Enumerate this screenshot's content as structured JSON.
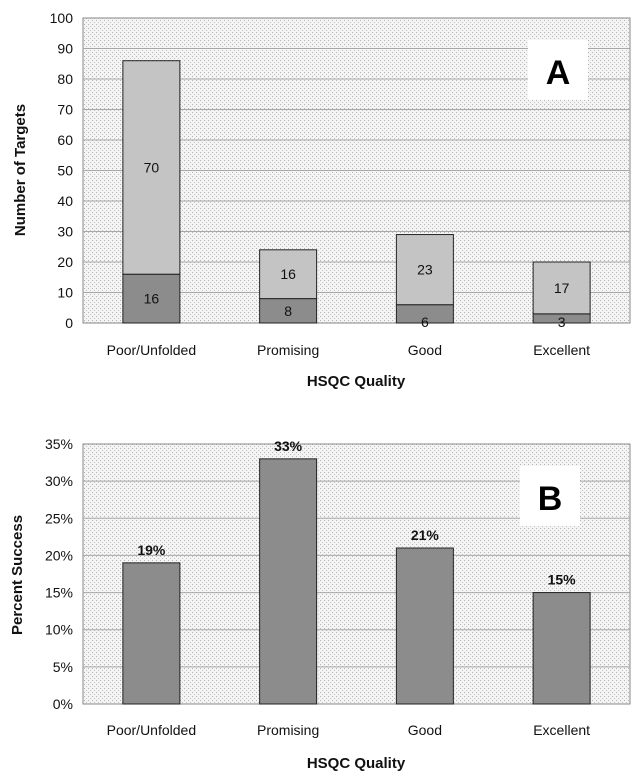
{
  "chart_data": [
    {
      "type": "bar",
      "stacked": true,
      "panel_label": "A",
      "categories": [
        "Poor/Unfolded",
        "Promising",
        "Good",
        "Excellent"
      ],
      "series": [
        {
          "values": [
            16,
            8,
            6,
            3
          ],
          "color": "#8c8c8c"
        },
        {
          "values": [
            70,
            16,
            23,
            17
          ],
          "color": "#c4c4c4"
        }
      ],
      "xlabel": "HSQC Quality",
      "ylabel": "Number of Targets",
      "ylim": [
        0,
        100
      ],
      "yticks": [
        0,
        10,
        20,
        30,
        40,
        50,
        60,
        70,
        80,
        90,
        100
      ],
      "grid": true
    },
    {
      "type": "bar",
      "panel_label": "B",
      "categories": [
        "Poor/Unfolded",
        "Promising",
        "Good",
        "Excellent"
      ],
      "values": [
        0.19,
        0.33,
        0.21,
        0.15
      ],
      "data_labels": [
        "19%",
        "33%",
        "21%",
        "15%"
      ],
      "color": "#8c8c8c",
      "xlabel": "HSQC Quality",
      "ylabel": "Percent Success",
      "ylim": [
        0,
        0.35
      ],
      "yticks": [
        "0%",
        "5%",
        "10%",
        "15%",
        "20%",
        "25%",
        "30%",
        "35%"
      ],
      "grid": true
    }
  ]
}
